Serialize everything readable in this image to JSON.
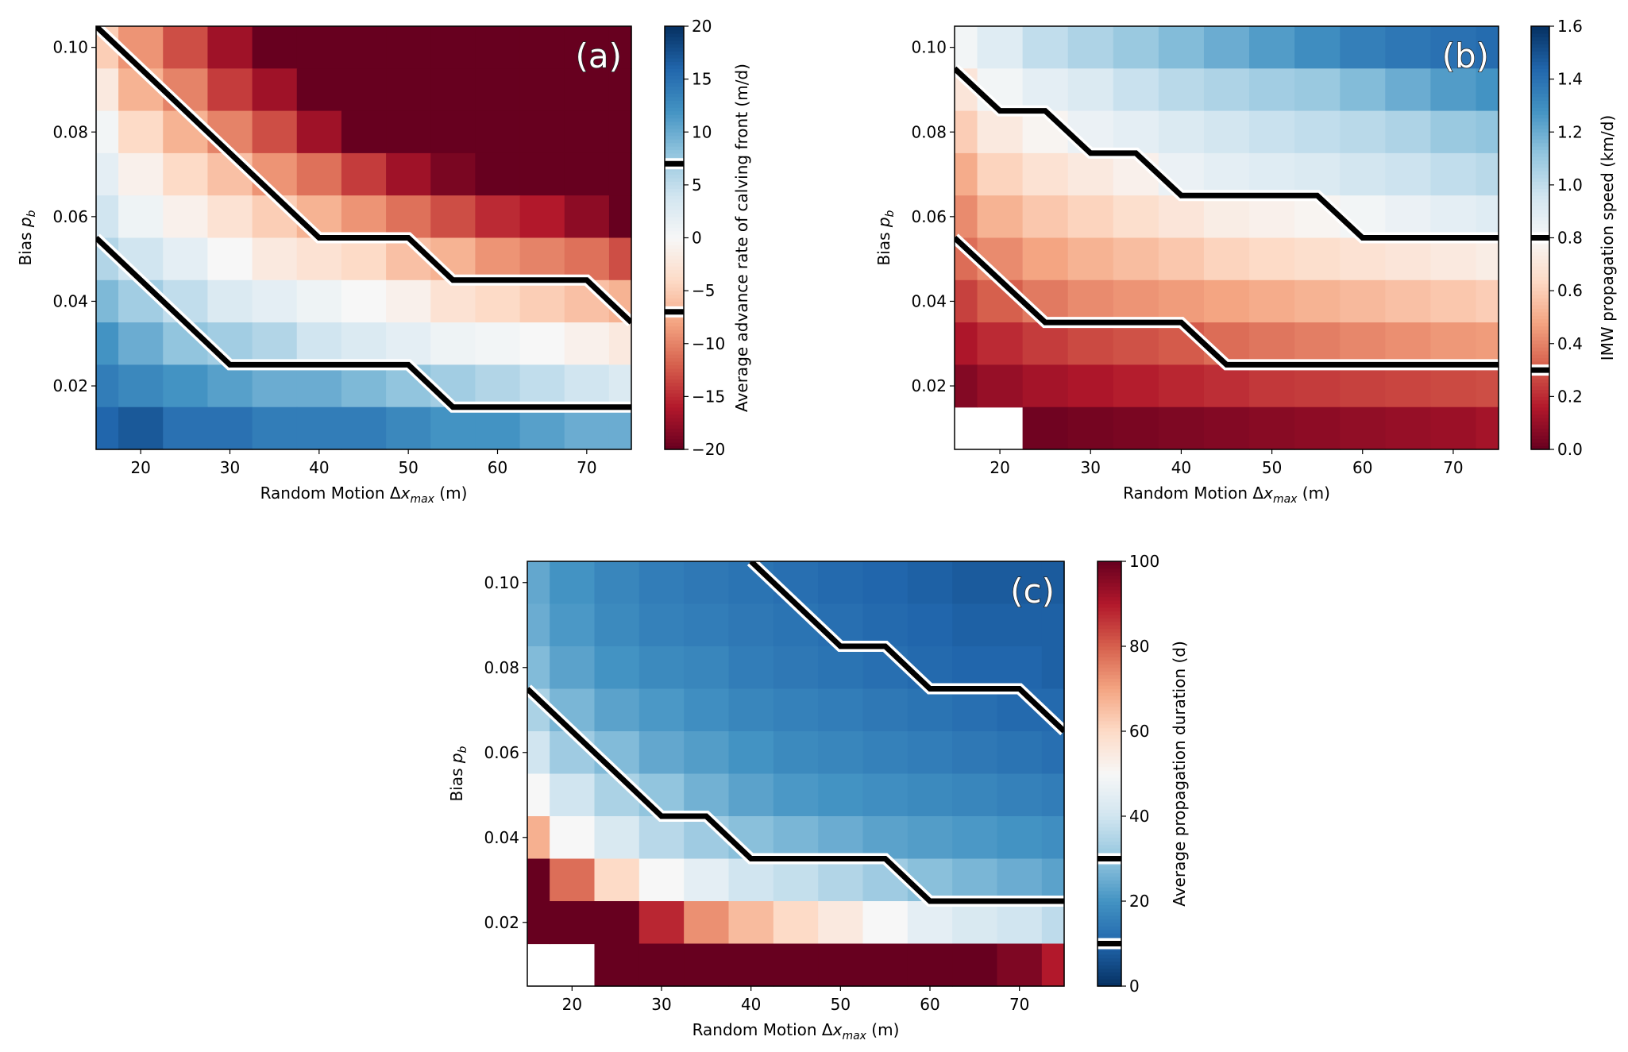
{
  "chart_data": [
    {
      "type": "heatmap",
      "panel_label": "(a)",
      "xlabel": "Random Motion Δx_max (m)",
      "ylabel": "Bias p_b",
      "colorbar_label": "Average advance rate of calving front (m/d)",
      "colormap": "RdBu",
      "clim": [
        -20,
        20
      ],
      "colorbar_ticks": [
        "−20",
        "−15",
        "−10",
        "−5",
        "0",
        "5",
        "10",
        "15",
        "20"
      ],
      "colorbar_tick_values": [
        -20,
        -15,
        -10,
        -5,
        0,
        5,
        10,
        15,
        20
      ],
      "x": [
        15,
        20,
        25,
        30,
        35,
        40,
        45,
        50,
        55,
        60,
        65,
        70,
        75
      ],
      "y": [
        0.1,
        0.09,
        0.08,
        0.07,
        0.06,
        0.05,
        0.04,
        0.03,
        0.02,
        0.01
      ],
      "xticks": [
        "20",
        "30",
        "40",
        "50",
        "60",
        "70"
      ],
      "xtick_values": [
        20,
        30,
        40,
        50,
        60,
        70
      ],
      "yticks": [
        "0.02",
        "0.04",
        "0.06",
        "0.08",
        "0.10"
      ],
      "ytick_values": [
        0.02,
        0.04,
        0.06,
        0.08,
        0.1
      ],
      "xlim": [
        15,
        75
      ],
      "ylim": [
        0.005,
        0.105
      ],
      "values": [
        [
          -5,
          -9,
          -13,
          -17,
          -20,
          -20,
          -20,
          -20,
          -20,
          -20,
          -20,
          -20,
          -20
        ],
        [
          -2,
          -7,
          -10,
          -14,
          -17,
          -20,
          -20,
          -20,
          -20,
          -20,
          -20,
          -20,
          -20
        ],
        [
          0.5,
          -4,
          -7,
          -10,
          -13,
          -17,
          -20,
          -20,
          -20,
          -20,
          -20,
          -20,
          -20
        ],
        [
          2,
          -1,
          -4,
          -6,
          -9,
          -11,
          -14,
          -17,
          -19,
          -20,
          -20,
          -20,
          -20
        ],
        [
          4,
          1,
          -1,
          -3,
          -5,
          -7,
          -9,
          -11,
          -13,
          -15,
          -16,
          -18,
          -20
        ],
        [
          6,
          4,
          2,
          0,
          -2,
          -3,
          -4,
          -6,
          -7,
          -9,
          -10,
          -11,
          -13
        ],
        [
          9,
          7,
          5,
          3,
          2,
          1,
          0,
          -1,
          -3,
          -4,
          -5,
          -6,
          -7
        ],
        [
          12,
          10,
          8,
          7,
          6,
          4,
          3,
          2,
          1,
          0.5,
          0,
          -1,
          -2
        ],
        [
          14,
          13,
          12,
          11,
          10,
          10,
          9,
          8,
          7,
          6,
          5,
          4,
          3
        ],
        [
          16,
          17,
          15,
          15,
          14,
          14,
          14,
          13,
          12,
          12,
          11,
          10,
          10
        ]
      ],
      "contour_levels": [
        -7,
        7
      ],
      "contours": [
        [
          [
            15,
            0.105
          ],
          [
            40,
            0.055
          ],
          [
            50,
            0.055
          ],
          [
            55,
            0.045
          ],
          [
            70,
            0.045
          ],
          [
            75,
            0.035
          ]
        ],
        [
          [
            15,
            0.055
          ],
          [
            30,
            0.025
          ],
          [
            50,
            0.025
          ],
          [
            55,
            0.015
          ],
          [
            75,
            0.015
          ]
        ]
      ]
    },
    {
      "type": "heatmap",
      "panel_label": "(b)",
      "xlabel": "Random Motion Δx_max (m)",
      "ylabel": "Bias p_b",
      "colorbar_label": "IMW propagation speed (km/d)",
      "colormap": "RdBu",
      "clim": [
        0,
        1.6
      ],
      "colorbar_ticks": [
        "0.0",
        "0.2",
        "0.4",
        "0.6",
        "0.8",
        "1.0",
        "1.2",
        "1.4",
        "1.6"
      ],
      "colorbar_tick_values": [
        0,
        0.2,
        0.4,
        0.6,
        0.8,
        1.0,
        1.2,
        1.4,
        1.6
      ],
      "x": [
        15,
        20,
        25,
        30,
        35,
        40,
        45,
        50,
        55,
        60,
        65,
        70,
        75
      ],
      "y": [
        0.1,
        0.09,
        0.08,
        0.07,
        0.06,
        0.05,
        0.04,
        0.03,
        0.02,
        0.01
      ],
      "xticks": [
        "20",
        "30",
        "40",
        "50",
        "60",
        "70"
      ],
      "xtick_values": [
        20,
        30,
        40,
        50,
        60,
        70
      ],
      "yticks": [
        "0.02",
        "0.04",
        "0.06",
        "0.08",
        "0.10"
      ],
      "ytick_values": [
        0.02,
        0.04,
        0.06,
        0.08,
        0.1
      ],
      "xlim": [
        15,
        75
      ],
      "ylim": [
        0.005,
        0.105
      ],
      "values": [
        [
          0.82,
          0.9,
          1.0,
          1.05,
          1.1,
          1.15,
          1.2,
          1.25,
          1.3,
          1.35,
          1.38,
          1.4,
          1.42
        ],
        [
          0.7,
          0.82,
          0.88,
          0.92,
          0.98,
          1.02,
          1.05,
          1.08,
          1.1,
          1.15,
          1.2,
          1.25,
          1.28
        ],
        [
          0.6,
          0.72,
          0.78,
          0.85,
          0.88,
          0.92,
          0.95,
          0.98,
          1.0,
          1.02,
          1.05,
          1.1,
          1.12
        ],
        [
          0.5,
          0.62,
          0.68,
          0.72,
          0.76,
          0.85,
          0.88,
          0.9,
          0.92,
          0.95,
          0.97,
          1.0,
          1.02
        ],
        [
          0.42,
          0.52,
          0.58,
          0.62,
          0.66,
          0.7,
          0.74,
          0.76,
          0.78,
          0.82,
          0.85,
          0.88,
          0.9
        ],
        [
          0.35,
          0.42,
          0.48,
          0.52,
          0.55,
          0.58,
          0.62,
          0.64,
          0.66,
          0.68,
          0.7,
          0.72,
          0.74
        ],
        [
          0.25,
          0.32,
          0.38,
          0.42,
          0.44,
          0.46,
          0.48,
          0.5,
          0.52,
          0.54,
          0.56,
          0.58,
          0.6
        ],
        [
          0.15,
          0.2,
          0.24,
          0.27,
          0.29,
          0.31,
          0.35,
          0.37,
          0.39,
          0.41,
          0.43,
          0.45,
          0.46
        ],
        [
          0.06,
          0.1,
          0.13,
          0.15,
          0.17,
          0.19,
          0.21,
          0.23,
          0.24,
          0.25,
          0.26,
          0.27,
          0.28
        ],
        [
          null,
          null,
          0.02,
          0.03,
          0.04,
          0.05,
          0.06,
          0.07,
          0.08,
          0.09,
          0.1,
          0.11,
          0.13
        ]
      ],
      "contour_levels": [
        0.3,
        0.8
      ],
      "contours": [
        [
          [
            15,
            0.095
          ],
          [
            20,
            0.085
          ],
          [
            25,
            0.085
          ],
          [
            30,
            0.075
          ],
          [
            35,
            0.075
          ],
          [
            40,
            0.065
          ],
          [
            55,
            0.065
          ],
          [
            60,
            0.055
          ],
          [
            75,
            0.055
          ]
        ],
        [
          [
            15,
            0.055
          ],
          [
            25,
            0.035
          ],
          [
            40,
            0.035
          ],
          [
            45,
            0.025
          ],
          [
            75,
            0.025
          ]
        ]
      ]
    },
    {
      "type": "heatmap",
      "panel_label": "(c)",
      "xlabel": "Random Motion Δx_max (m)",
      "ylabel": "Bias p_b",
      "colorbar_label": "Average propagation duration (d)",
      "colormap": "RdBu_r",
      "clim": [
        0,
        100
      ],
      "colorbar_ticks": [
        "0",
        "20",
        "40",
        "60",
        "80",
        "100"
      ],
      "colorbar_tick_values": [
        0,
        20,
        40,
        60,
        80,
        100
      ],
      "x": [
        15,
        20,
        25,
        30,
        35,
        40,
        45,
        50,
        55,
        60,
        65,
        70,
        75
      ],
      "y": [
        0.1,
        0.09,
        0.08,
        0.07,
        0.06,
        0.05,
        0.04,
        0.03,
        0.02,
        0.01
      ],
      "xticks": [
        "20",
        "30",
        "40",
        "50",
        "60",
        "70"
      ],
      "xtick_values": [
        20,
        30,
        40,
        50,
        60,
        70
      ],
      "yticks": [
        "0.02",
        "0.04",
        "0.06",
        "0.08",
        "0.10"
      ],
      "ytick_values": [
        0.02,
        0.04,
        0.06,
        0.08,
        0.1
      ],
      "xlim": [
        15,
        75
      ],
      "ylim": [
        0.005,
        0.105
      ],
      "values": [
        [
          24,
          20,
          17,
          15,
          14,
          13,
          12,
          11,
          10,
          9,
          8,
          8,
          8
        ],
        [
          25,
          21,
          18,
          16,
          15,
          14,
          13,
          12,
          11,
          10,
          9,
          9,
          9
        ],
        [
          28,
          23,
          20,
          18,
          17,
          15,
          14,
          13,
          12,
          11,
          10,
          10,
          9
        ],
        [
          34,
          27,
          23,
          21,
          19,
          17,
          16,
          15,
          14,
          13,
          12,
          11,
          11
        ],
        [
          40,
          32,
          28,
          24,
          22,
          20,
          18,
          17,
          16,
          15,
          14,
          13,
          12
        ],
        [
          50,
          40,
          34,
          30,
          26,
          23,
          21,
          20,
          19,
          18,
          17,
          16,
          15
        ],
        [
          68,
          50,
          42,
          36,
          32,
          29,
          27,
          25,
          23,
          22,
          21,
          20,
          19
        ],
        [
          100,
          78,
          60,
          50,
          45,
          40,
          38,
          35,
          32,
          29,
          27,
          25,
          23
        ],
        [
          100,
          100,
          100,
          88,
          73,
          66,
          60,
          55,
          50,
          45,
          42,
          40,
          37
        ],
        [
          null,
          null,
          100,
          100,
          100,
          100,
          100,
          100,
          100,
          100,
          100,
          97,
          90
        ]
      ],
      "contour_levels": [
        10,
        30
      ],
      "contours": [
        [
          [
            40,
            0.105
          ],
          [
            50,
            0.085
          ],
          [
            55,
            0.085
          ],
          [
            60,
            0.075
          ],
          [
            70,
            0.075
          ],
          [
            75,
            0.065
          ]
        ],
        [
          [
            15,
            0.075
          ],
          [
            30,
            0.045
          ],
          [
            35,
            0.045
          ],
          [
            40,
            0.035
          ],
          [
            55,
            0.035
          ],
          [
            60,
            0.025
          ],
          [
            75,
            0.025
          ]
        ]
      ]
    }
  ]
}
